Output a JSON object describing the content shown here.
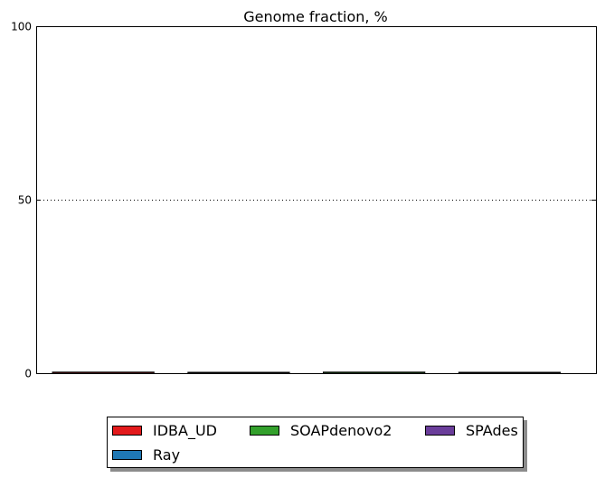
{
  "chart_data": {
    "type": "bar",
    "title": "Genome fraction, %",
    "xlabel": "",
    "ylabel": "",
    "ylim": [
      0,
      100
    ],
    "yticks": [
      "0",
      "50",
      "100"
    ],
    "grid": "horizontal-dotted",
    "legend_placement": "bottom-center",
    "series": [
      {
        "name": "IDBA_UD",
        "color": "#e31a1c",
        "values": [
          0.3
        ]
      },
      {
        "name": "Ray",
        "color": "#1f78b4",
        "values": [
          0.1
        ]
      },
      {
        "name": "SOAPdenovo2",
        "color": "#33a02c",
        "values": [
          0.3
        ]
      },
      {
        "name": "SPAdes",
        "color": "#6a3d9a",
        "values": [
          0.1
        ]
      }
    ]
  }
}
